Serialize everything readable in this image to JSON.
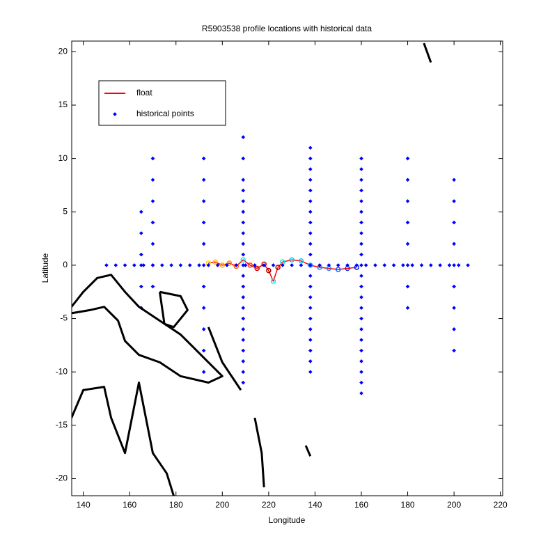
{
  "chart_data": {
    "type": "scatter",
    "title": "R5903538 profile locations with historical data",
    "xlabel": "Longitude",
    "ylabel": "Latitude",
    "xlim": [
      135,
      321
    ],
    "ylim": [
      -21.6,
      21
    ],
    "xticks": [
      140,
      160,
      180,
      200,
      220,
      {
        "value": 240,
        "label": "140"
      },
      {
        "value": 260,
        "label": "160"
      },
      {
        "value": 280,
        "label": "180"
      },
      {
        "value": 300,
        "label": "200"
      },
      {
        "value": 320,
        "label": "220"
      }
    ],
    "yticks": [
      -20,
      -15,
      -10,
      -5,
      0,
      5,
      10,
      15,
      20
    ],
    "legend": "upper left",
    "series": [
      {
        "name": "float",
        "color": "#ff0000",
        "mode": "line+markers",
        "x": [
          194,
          197,
          200,
          203,
          206,
          209,
          212,
          215,
          218,
          220,
          222,
          224,
          226,
          230,
          234,
          238,
          242,
          246,
          250,
          254,
          258
        ],
        "y": [
          0.2,
          0.3,
          0,
          0.2,
          -0.1,
          0.5,
          0,
          -0.3,
          0.1,
          -0.5,
          -1.5,
          -0.2,
          0.3,
          0.5,
          0.4,
          0,
          -0.2,
          -0.3,
          -0.4,
          -0.3,
          -0.2
        ],
        "marker_colors": [
          "#ffd700",
          "#ffc000",
          "#ffa500",
          "#ff8c00",
          "#ff6000",
          "#00e5ee",
          "#ff3000",
          "#cc0000",
          "#b00000",
          "#990000",
          "#00e5ee",
          "#a00000",
          "#00e5ee",
          "#00c8ff",
          "#00c8ff",
          "#3399ff",
          "#1e90ff",
          "#1e90ff",
          "#1060ff",
          "#0040ff",
          "#0020ff"
        ]
      },
      {
        "name": "historical points",
        "color": "#0000ff",
        "mode": "markers",
        "x": [
          209,
          209,
          209,
          209,
          209,
          209,
          209,
          209,
          209,
          209,
          209,
          209,
          209,
          209,
          209,
          209,
          209,
          209,
          209,
          209,
          209,
          209,
          238,
          238,
          238,
          238,
          238,
          238,
          238,
          238,
          238,
          238,
          238,
          238,
          238,
          238,
          238,
          238,
          238,
          238,
          238,
          238,
          238,
          238,
          260,
          260,
          260,
          260,
          260,
          260,
          260,
          260,
          260,
          260,
          260,
          260,
          260,
          260,
          260,
          260,
          260,
          260,
          260,
          260,
          260,
          260,
          260,
          192,
          192,
          192,
          192,
          192,
          192,
          192,
          192,
          192,
          192,
          192,
          170,
          170,
          170,
          170,
          170,
          170,
          170,
          165,
          165,
          165,
          165,
          165,
          165,
          280,
          280,
          280,
          280,
          280,
          280,
          280,
          280,
          300,
          300,
          300,
          300,
          300,
          300,
          300,
          300,
          300,
          150,
          154,
          158,
          162,
          166,
          170,
          174,
          178,
          182,
          186,
          190,
          194,
          198,
          202,
          206,
          210,
          214,
          218,
          222,
          226,
          230,
          234,
          238,
          242,
          246,
          250,
          254,
          258,
          262,
          266,
          270,
          274,
          278,
          282,
          286,
          290,
          294,
          298,
          302,
          306
        ],
        "y": [
          12,
          10,
          8,
          7,
          6,
          5,
          4,
          3,
          2,
          1,
          0,
          -1,
          -2,
          -3,
          -4,
          -5,
          -6,
          -7,
          -8,
          -9,
          -10,
          -11,
          11,
          10,
          9,
          8,
          7,
          6,
          5,
          4,
          3,
          2,
          1,
          0,
          -1,
          -2,
          -3,
          -4,
          -5,
          -6,
          -7,
          -8,
          -9,
          -10,
          10,
          9,
          8,
          7,
          6,
          5,
          4,
          3,
          2,
          1,
          0,
          -1,
          -2,
          -3,
          -4,
          -5,
          -6,
          -7,
          -8,
          -9,
          -10,
          -11,
          -12,
          10,
          8,
          6,
          4,
          2,
          0,
          -2,
          -4,
          -6,
          -8,
          -10,
          10,
          8,
          6,
          4,
          2,
          0,
          -2,
          5,
          3,
          1,
          0,
          -2,
          -4,
          10,
          8,
          6,
          4,
          2,
          0,
          -2,
          -4,
          8,
          6,
          4,
          2,
          0,
          -2,
          -4,
          -6,
          -8,
          0,
          0,
          0,
          0,
          0,
          0,
          0,
          0,
          0,
          0,
          0,
          0,
          0,
          0,
          0,
          0,
          0,
          0,
          0,
          0,
          0,
          0,
          0,
          0,
          0,
          0,
          0,
          0,
          0,
          0,
          0,
          0,
          0,
          0,
          0,
          0,
          0,
          0,
          0,
          0
        ]
      },
      {
        "color": "#000000",
        "mode": "line",
        "x": [
          134.9,
          140,
          146,
          152,
          158,
          164,
          173,
          182,
          188,
          194,
          200,
          194,
          182,
          173,
          164,
          158,
          155,
          149,
          143,
          134.9,
          null,
          134.9,
          140,
          149,
          152,
          158,
          161,
          164,
          167,
          170,
          176,
          179,
          null,
          173,
          182,
          185,
          179,
          175,
          173,
          null,
          194,
          200,
          208,
          null,
          287,
          290,
          null,
          214,
          217,
          218,
          null,
          236,
          238
        ],
        "y": [
          -3.9,
          -2.5,
          -1.2,
          -0.9,
          -2.5,
          -3.9,
          -5.2,
          -6.5,
          -7.8,
          -9.1,
          -10.4,
          -11,
          -10.4,
          -9.1,
          -8.4,
          -7.1,
          -5.2,
          -3.9,
          -4.2,
          -4.5,
          null,
          -14.3,
          -11.7,
          -11.4,
          -14.3,
          -17.6,
          -14.3,
          -11,
          -14.3,
          -17.6,
          -19.5,
          -21.6,
          null,
          -2.5,
          -2.9,
          -4.2,
          -5.8,
          -5.5,
          -2.5,
          null,
          -5.8,
          -9.1,
          -11.7,
          null,
          20.8,
          19,
          null,
          -14.3,
          -17.6,
          -20.8,
          null,
          -16.9,
          -17.9
        ]
      }
    ]
  }
}
